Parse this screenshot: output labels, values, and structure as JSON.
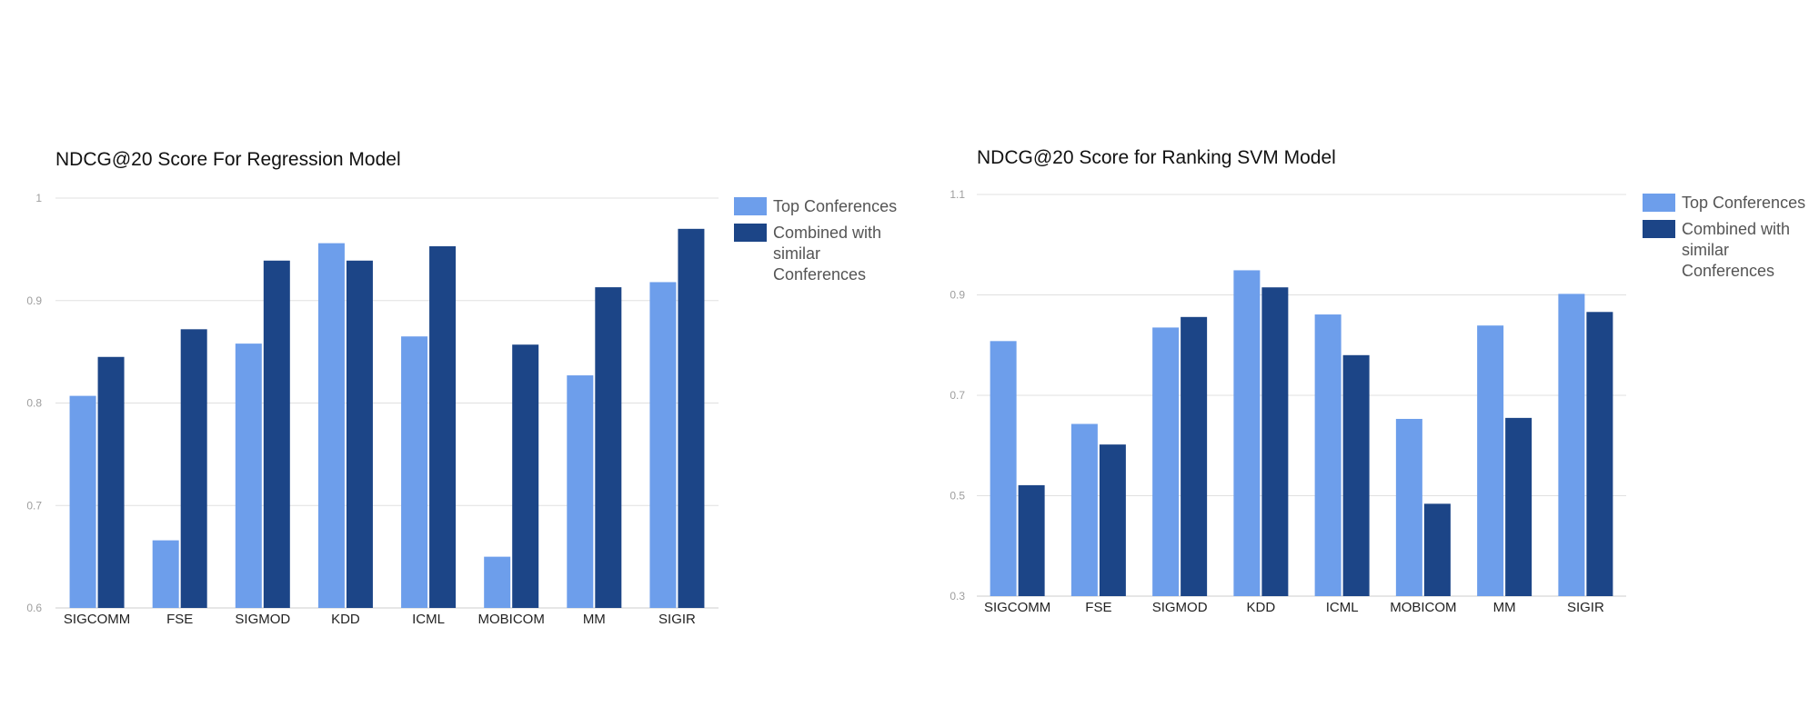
{
  "colors": {
    "top": "#6d9eeb",
    "combined": "#1c4587",
    "grid": "#e0e0e0",
    "tick": "#9e9e9e"
  },
  "chart_data": [
    {
      "type": "bar",
      "title": "NDCG@20 Score For Regression Model",
      "categories": [
        "SIGCOMM",
        "FSE",
        "SIGMOD",
        "KDD",
        "ICML",
        "MOBICOM",
        "MM",
        "SIGIR"
      ],
      "series": [
        {
          "name": "Top Conferences",
          "values": [
            0.807,
            0.666,
            0.858,
            0.956,
            0.865,
            0.65,
            0.827,
            0.918
          ]
        },
        {
          "name": "Combined with similar Conferences",
          "values": [
            0.845,
            0.872,
            0.939,
            0.939,
            0.953,
            0.857,
            0.913,
            0.97
          ]
        }
      ],
      "ylim": [
        0.6,
        1.0
      ],
      "yticks": [
        "0.6",
        "0.7",
        "0.8",
        "0.9",
        "1"
      ],
      "xlabel": "",
      "ylabel": "",
      "grid": true,
      "legend": "right"
    },
    {
      "type": "bar",
      "title": "NDCG@20 Score for Ranking SVM Model",
      "categories": [
        "SIGCOMM",
        "FSE",
        "SIGMOD",
        "KDD",
        "ICML",
        "MOBICOM",
        "MM",
        "SIGIR"
      ],
      "series": [
        {
          "name": "Top Conferences",
          "values": [
            0.808,
            0.643,
            0.835,
            0.949,
            0.861,
            0.653,
            0.839,
            0.902
          ]
        },
        {
          "name": "Combined with similar Conferences",
          "values": [
            0.521,
            0.602,
            0.856,
            0.915,
            0.78,
            0.484,
            0.655,
            0.866
          ]
        }
      ],
      "ylim": [
        0.3,
        1.1
      ],
      "yticks": [
        "0.3",
        "0.5",
        "0.7",
        "0.9",
        "1.1"
      ],
      "xlabel": "",
      "ylabel": "",
      "grid": true,
      "legend": "right"
    }
  ]
}
